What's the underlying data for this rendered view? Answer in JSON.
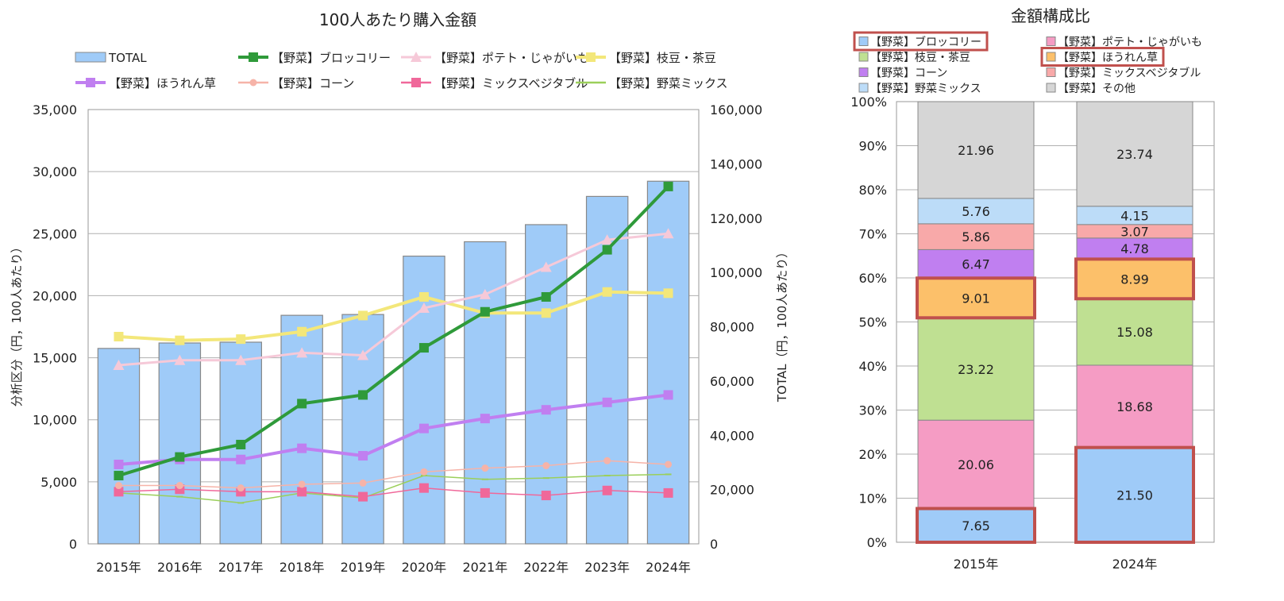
{
  "chart_data": [
    {
      "type": "bar+line",
      "title": "100人あたり購入金額",
      "categories": [
        "2015年",
        "2016年",
        "2017年",
        "2018年",
        "2019年",
        "2020年",
        "2021年",
        "2022年",
        "2023年",
        "2024年"
      ],
      "ylabel_left": "分析区分（円，100人あたり）",
      "ylabel_right": "TOTAL（円，100人あたり）",
      "ylim_left": [
        0,
        35000
      ],
      "ylim_right": [
        0,
        160000
      ],
      "yticks_left": [
        "0",
        "5,000",
        "10,000",
        "15,000",
        "20,000",
        "25,000",
        "30,000",
        "35,000"
      ],
      "yticks_right": [
        "0",
        "20,000",
        "40,000",
        "60,000",
        "80,000",
        "100,000",
        "120,000",
        "140,000",
        "160,000"
      ],
      "bar_series": {
        "name": "TOTAL",
        "axis": "right",
        "color": "#9fcbf8",
        "values": [
          72000,
          74000,
          74300,
          84200,
          84500,
          106000,
          111300,
          117600,
          128000,
          133600
        ]
      },
      "line_series": [
        {
          "name": "【野菜】ブロッコリー",
          "color": "#2f9a3a",
          "marker": "square",
          "width": 4,
          "values": [
            5500,
            7000,
            8000,
            11300,
            12000,
            15800,
            18700,
            19900,
            23700,
            28800
          ]
        },
        {
          "name": "【野菜】ポテト・じゃがいも",
          "color": "#f6c9d8",
          "marker": "triangle",
          "width": 3,
          "values": [
            14400,
            14800,
            14800,
            15400,
            15200,
            19000,
            20100,
            22300,
            24500,
            25000
          ]
        },
        {
          "name": "【野菜】枝豆・茶豆",
          "color": "#f3e77a",
          "marker": "square",
          "width": 4,
          "values": [
            16700,
            16400,
            16500,
            17100,
            18400,
            19900,
            18600,
            18600,
            20300,
            20200
          ]
        },
        {
          "name": "【野菜】ほうれん草",
          "color": "#c07ff0",
          "marker": "square",
          "width": 4,
          "values": [
            6400,
            6800,
            6800,
            7700,
            7100,
            9300,
            10100,
            10800,
            11400,
            12000
          ]
        },
        {
          "name": "【野菜】コーン",
          "color": "#f6b3a8",
          "marker": "circle",
          "width": 1.5,
          "values": [
            4700,
            4700,
            4500,
            4800,
            4900,
            5800,
            6100,
            6300,
            6700,
            6400
          ]
        },
        {
          "name": "【野菜】ミックスベジタブル",
          "color": "#f0689a",
          "marker": "square",
          "width": 1.5,
          "values": [
            4200,
            4400,
            4200,
            4200,
            3800,
            4500,
            4100,
            3900,
            4300,
            4100
          ]
        },
        {
          "name": "【野菜】野菜ミックス",
          "color": "#9bcf5a",
          "marker": "dash",
          "width": 1.5,
          "values": [
            4100,
            3800,
            3300,
            4100,
            3700,
            5500,
            5200,
            5300,
            5500,
            5600
          ]
        }
      ]
    },
    {
      "type": "stacked-bar",
      "title": "金額構成比",
      "categories": [
        "2015年",
        "2024年"
      ],
      "ylim": [
        0,
        100
      ],
      "yticks": [
        "0%",
        "10%",
        "20%",
        "30%",
        "40%",
        "50%",
        "60%",
        "70%",
        "80%",
        "90%",
        "100%"
      ],
      "legend": [
        {
          "name": "【野菜】ブロッコリー",
          "color": "#9fcbf8",
          "highlight": true
        },
        {
          "name": "【野菜】ポテト・じゃがいも",
          "color": "#f59cc4",
          "highlight": false
        },
        {
          "name": "【野菜】枝豆・茶豆",
          "color": "#bfe092",
          "highlight": false
        },
        {
          "name": "【野菜】ほうれん草",
          "color": "#fcc06a",
          "highlight": true
        },
        {
          "name": "【野菜】コーン",
          "color": "#c07ff0",
          "highlight": false
        },
        {
          "name": "【野菜】ミックスベジタブル",
          "color": "#f8a9a9",
          "highlight": false
        },
        {
          "name": "【野菜】野菜ミックス",
          "color": "#bcdcf8",
          "highlight": false
        },
        {
          "name": "【野菜】その他",
          "color": "#d6d6d6",
          "highlight": false
        }
      ],
      "series": [
        {
          "name": "【野菜】ブロッコリー",
          "color": "#9fcbf8",
          "values": [
            7.65,
            21.5
          ],
          "labels": [
            "7.65",
            "21.50"
          ],
          "highlight": true
        },
        {
          "name": "【野菜】ポテト・じゃがいも",
          "color": "#f59cc4",
          "values": [
            20.06,
            18.68
          ],
          "labels": [
            "20.06",
            "18.68"
          ],
          "highlight": false
        },
        {
          "name": "【野菜】枝豆・茶豆",
          "color": "#bfe092",
          "values": [
            23.22,
            15.08
          ],
          "labels": [
            "23.22",
            "15.08"
          ],
          "highlight": false
        },
        {
          "name": "【野菜】ほうれん草",
          "color": "#fcc06a",
          "values": [
            9.01,
            8.99
          ],
          "labels": [
            "9.01",
            "8.99"
          ],
          "highlight": true
        },
        {
          "name": "【野菜】コーン",
          "color": "#c07ff0",
          "values": [
            6.47,
            4.78
          ],
          "labels": [
            "6.47",
            "4.78"
          ],
          "highlight": false
        },
        {
          "name": "【野菜】ミックスベジタブル",
          "color": "#f8a9a9",
          "values": [
            5.86,
            3.07
          ],
          "labels": [
            "5.86",
            "3.07"
          ],
          "highlight": false
        },
        {
          "name": "【野菜】野菜ミックス",
          "color": "#bcdcf8",
          "values": [
            5.76,
            4.15
          ],
          "labels": [
            "5.76",
            "4.15"
          ],
          "highlight": false
        },
        {
          "name": "【野菜】その他",
          "color": "#d6d6d6",
          "values": [
            21.96,
            23.74
          ],
          "labels": [
            "21.96",
            "23.74"
          ],
          "highlight": false
        }
      ],
      "highlight_color": "#c0504d"
    }
  ]
}
